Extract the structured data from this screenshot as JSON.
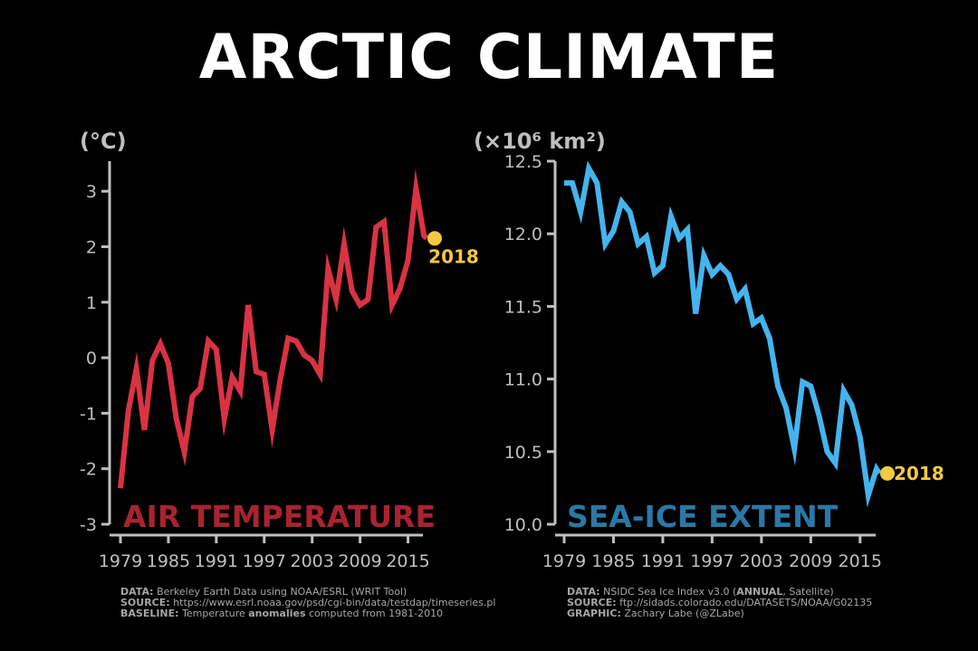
{
  "title": "ARCTIC CLIMATE",
  "colors": {
    "background": "#000000",
    "air_line": "#d93343",
    "air_label": "#a8232f",
    "ice_line": "#45b4ee",
    "ice_label": "#2a78a6",
    "marker": "#f5c842",
    "axis": "#bfbfbf"
  },
  "chart_data": [
    {
      "type": "line",
      "label": "AIR TEMPERATURE",
      "unit": "(°C)",
      "x_ticks": [
        "1979",
        "1985",
        "1991",
        "1997",
        "2003",
        "2009",
        "2015"
      ],
      "y_ticks": [
        "-3",
        "-2",
        "-1",
        "0",
        "1",
        "2",
        "3"
      ],
      "xlim": [
        1979,
        2018
      ],
      "ylim": [
        -3,
        3.3
      ],
      "annotation": "2018",
      "x": [
        1979,
        1980,
        1981,
        1982,
        1983,
        1984,
        1985,
        1986,
        1987,
        1988,
        1989,
        1990,
        1991,
        1992,
        1993,
        1994,
        1995,
        1996,
        1997,
        1998,
        1999,
        2000,
        2001,
        2002,
        2003,
        2004,
        2005,
        2006,
        2007,
        2008,
        2009,
        2010,
        2011,
        2012,
        2013,
        2014,
        2015,
        2016,
        2017,
        2018
      ],
      "y": [
        -2.35,
        -0.95,
        -0.2,
        -1.3,
        -0.05,
        0.25,
        -0.1,
        -1.1,
        -1.7,
        -0.7,
        -0.55,
        0.3,
        0.15,
        -1.1,
        -0.35,
        -0.6,
        0.95,
        -0.25,
        -0.3,
        -1.3,
        -0.4,
        0.35,
        0.3,
        0.05,
        -0.05,
        -0.3,
        1.6,
        1.05,
        2.05,
        1.2,
        0.95,
        1.05,
        2.35,
        2.45,
        0.95,
        1.25,
        1.75,
        3.05,
        2.2,
        2.15
      ]
    },
    {
      "type": "line",
      "label": "SEA-ICE EXTENT",
      "unit": "(×10⁶ km²)",
      "x_ticks": [
        "1979",
        "1985",
        "1991",
        "1997",
        "2003",
        "2009",
        "2015"
      ],
      "y_ticks": [
        "10.0",
        "10.5",
        "11.0",
        "11.5",
        "12.0",
        "12.5"
      ],
      "xlim": [
        1979,
        2018
      ],
      "ylim": [
        10.0,
        12.5
      ],
      "annotation": "2018",
      "x": [
        1979,
        1980,
        1981,
        1982,
        1983,
        1984,
        1985,
        1986,
        1987,
        1988,
        1989,
        1990,
        1991,
        1992,
        1993,
        1994,
        1995,
        1996,
        1997,
        1998,
        1999,
        2000,
        2001,
        2002,
        2003,
        2004,
        2005,
        2006,
        2007,
        2008,
        2009,
        2010,
        2011,
        2012,
        2013,
        2014,
        2015,
        2016,
        2017,
        2018
      ],
      "y": [
        12.35,
        12.35,
        12.15,
        12.45,
        12.35,
        11.93,
        12.02,
        12.22,
        12.15,
        11.93,
        11.98,
        11.73,
        11.78,
        12.12,
        11.97,
        12.03,
        11.45,
        11.85,
        11.72,
        11.78,
        11.72,
        11.55,
        11.62,
        11.38,
        11.42,
        11.28,
        10.95,
        10.8,
        10.52,
        10.98,
        10.95,
        10.75,
        10.5,
        10.42,
        10.92,
        10.82,
        10.6,
        10.2,
        10.38,
        10.35
      ]
    }
  ],
  "credits": {
    "left": {
      "data_key": "DATA:",
      "data_val": "Berkeley Earth Data using NOAA/ESRL (WRIT Tool)",
      "source_key": "SOURCE:",
      "source_val": "https://www.esrl.noaa.gov/psd/cgi-bin/data/testdap/timeseries.pl",
      "baseline_key": "BASELINE:",
      "baseline_pre": "Temperature",
      "baseline_bold": "anomalies",
      "baseline_post": "computed from 1981-2010"
    },
    "right": {
      "data_key": "DATA:",
      "data_pre": "NSIDC Sea Ice Index v3.0 (",
      "data_bold": "ANNUAL",
      "data_post": ", Satellite)",
      "source_key": "SOURCE:",
      "source_val": "ftp://sidads.colorado.edu/DATASETS/NOAA/G02135",
      "graphic_key": "GRAPHIC:",
      "graphic_val": "Zachary Labe (@ZLabe)"
    }
  }
}
